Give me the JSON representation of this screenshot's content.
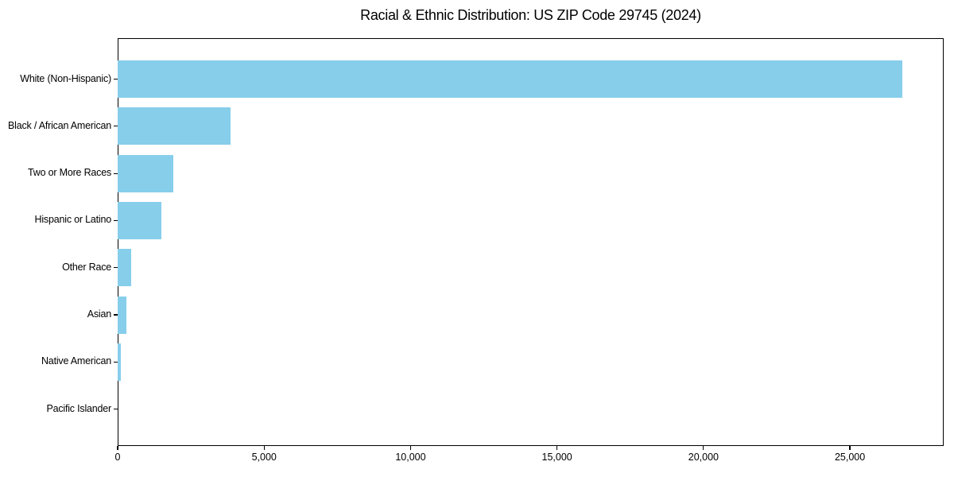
{
  "title": "Racial & Ethnic Distribution: US ZIP Code 29745 (2024)",
  "colors": {
    "bar": "#87CEEB",
    "frame": "#000000",
    "text": "#000000",
    "background": "#FFFFFF"
  },
  "chart_data": {
    "type": "bar",
    "orientation": "horizontal",
    "title": "Racial & Ethnic Distribution: US ZIP Code 29745 (2024)",
    "categories": [
      "White (Non-Hispanic)",
      "Black / African American",
      "Two or More Races",
      "Hispanic or Latino",
      "Other Race",
      "Asian",
      "Native American",
      "Pacific Islander"
    ],
    "values": [
      26800,
      3850,
      1900,
      1500,
      450,
      310,
      100,
      0
    ],
    "xlabel": "",
    "ylabel": "",
    "xlim": [
      0,
      28200
    ],
    "xticks": [
      0,
      5000,
      10000,
      15000,
      20000,
      25000
    ],
    "xtick_labels": [
      "0",
      "5,000",
      "10,000",
      "15,000",
      "20,000",
      "25,000"
    ],
    "grid": false,
    "legend": null,
    "bar_color": "#87CEEB"
  }
}
